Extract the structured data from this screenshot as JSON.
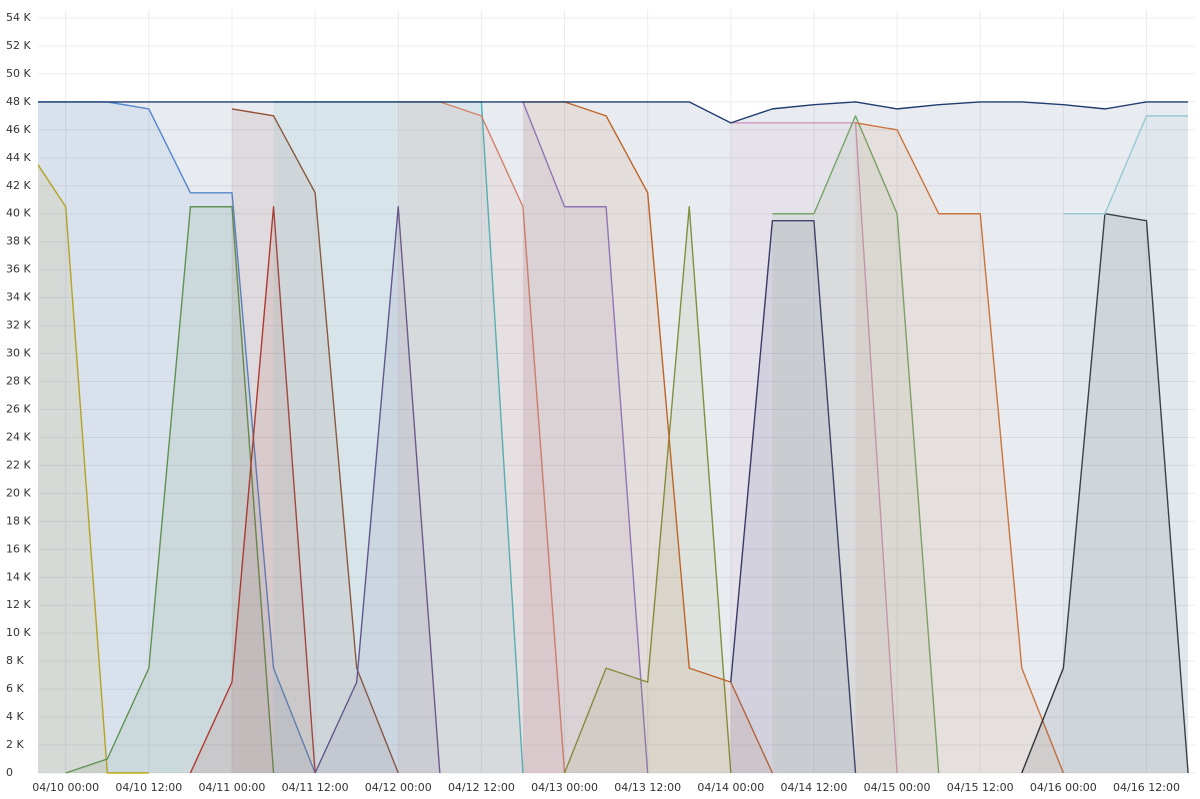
{
  "chart_data": {
    "type": "line",
    "x": [
      "04/09 18:00",
      "04/10 00:00",
      "04/10 06:00",
      "04/10 12:00",
      "04/10 18:00",
      "04/11 00:00",
      "04/11 06:00",
      "04/11 12:00",
      "04/11 18:00",
      "04/12 00:00",
      "04/12 06:00",
      "04/12 12:00",
      "04/12 18:00",
      "04/13 00:00",
      "04/13 06:00",
      "04/13 12:00",
      "04/13 18:00",
      "04/14 00:00",
      "04/14 06:00",
      "04/14 12:00",
      "04/14 18:00",
      "04/15 00:00",
      "04/15 06:00",
      "04/15 12:00",
      "04/15 18:00",
      "04/16 00:00",
      "04/16 06:00",
      "04/16 12:00",
      "04/16 18:00"
    ],
    "xlim": [
      "04/09 20:00",
      "04/16 19:00"
    ],
    "xticks": [
      "04/10 00:00",
      "04/10 12:00",
      "04/11 00:00",
      "04/11 12:00",
      "04/12 00:00",
      "04/12 12:00",
      "04/13 00:00",
      "04/13 12:00",
      "04/14 00:00",
      "04/14 12:00",
      "04/15 00:00",
      "04/15 12:00",
      "04/16 00:00",
      "04/16 12:00"
    ],
    "ylim": [
      0,
      54000
    ],
    "yticks": [
      {
        "value": 0,
        "label": "0"
      },
      {
        "value": 2000,
        "label": "2 K"
      },
      {
        "value": 4000,
        "label": "4 K"
      },
      {
        "value": 6000,
        "label": "6 K"
      },
      {
        "value": 8000,
        "label": "8 K"
      },
      {
        "value": 10000,
        "label": "10 K"
      },
      {
        "value": 12000,
        "label": "12 K"
      },
      {
        "value": 14000,
        "label": "14 K"
      },
      {
        "value": 16000,
        "label": "16 K"
      },
      {
        "value": 18000,
        "label": "18 K"
      },
      {
        "value": 20000,
        "label": "20 K"
      },
      {
        "value": 22000,
        "label": "22 K"
      },
      {
        "value": 24000,
        "label": "24 K"
      },
      {
        "value": 26000,
        "label": "26 K"
      },
      {
        "value": 28000,
        "label": "28 K"
      },
      {
        "value": 30000,
        "label": "30 K"
      },
      {
        "value": 32000,
        "label": "32 K"
      },
      {
        "value": 34000,
        "label": "34 K"
      },
      {
        "value": 36000,
        "label": "36 K"
      },
      {
        "value": 38000,
        "label": "38 K"
      },
      {
        "value": 40000,
        "label": "40 K"
      },
      {
        "value": 42000,
        "label": "42 K"
      },
      {
        "value": 44000,
        "label": "44 K"
      },
      {
        "value": 46000,
        "label": "46 K"
      },
      {
        "value": 48000,
        "label": "48 K"
      },
      {
        "value": 50000,
        "label": "50 K"
      },
      {
        "value": 52000,
        "label": "52 K"
      },
      {
        "value": 54000,
        "label": "54 K"
      }
    ],
    "grid": true,
    "series": [
      {
        "color": "#d4b106",
        "values": [
          45000,
          40500,
          0,
          0,
          null,
          null,
          null,
          null,
          null,
          null,
          null,
          null,
          null,
          null,
          null,
          null,
          null,
          null,
          null,
          null,
          null,
          null,
          null,
          null,
          null,
          null,
          null,
          null,
          null
        ]
      },
      {
        "color": "#6a9e3f",
        "values": [
          null,
          0,
          1000,
          7500,
          40500,
          40500,
          0,
          null,
          null,
          null,
          null,
          null,
          null,
          null,
          null,
          null,
          null,
          null,
          null,
          null,
          null,
          null,
          null,
          null,
          null,
          null,
          null,
          null,
          null
        ]
      },
      {
        "color": "#5b8fd6",
        "values": [
          48000,
          48000,
          48000,
          47500,
          41500,
          41500,
          7500,
          0,
          null,
          null,
          null,
          null,
          null,
          null,
          null,
          null,
          null,
          null,
          null,
          null,
          null,
          null,
          null,
          null,
          null,
          null,
          null,
          null,
          null
        ]
      },
      {
        "color": "#c0392b",
        "values": [
          null,
          null,
          null,
          null,
          0,
          6500,
          40500,
          0,
          null,
          null,
          null,
          null,
          null,
          null,
          null,
          null,
          null,
          null,
          null,
          null,
          null,
          null,
          null,
          null,
          null,
          null,
          null,
          null,
          null
        ]
      },
      {
        "color": "#a0522d",
        "values": [
          null,
          null,
          null,
          null,
          null,
          47500,
          47000,
          41500,
          7500,
          0,
          null,
          null,
          null,
          null,
          null,
          null,
          null,
          null,
          null,
          null,
          null,
          null,
          null,
          null,
          null,
          null,
          null,
          null,
          null
        ]
      },
      {
        "color": "#6c4f8e",
        "values": [
          null,
          null,
          null,
          null,
          null,
          null,
          null,
          0,
          6500,
          40500,
          0,
          null,
          null,
          null,
          null,
          null,
          null,
          null,
          null,
          null,
          null,
          null,
          null,
          null,
          null,
          null,
          null,
          null,
          null
        ]
      },
      {
        "color": "#4ec2c2",
        "values": [
          null,
          null,
          null,
          null,
          null,
          null,
          48000,
          48000,
          48000,
          48000,
          48000,
          48000,
          0,
          null,
          null,
          null,
          null,
          null,
          null,
          null,
          null,
          null,
          null,
          null,
          null,
          null,
          null,
          null,
          null
        ]
      },
      {
        "color": "#e8896a",
        "values": [
          null,
          null,
          null,
          null,
          null,
          null,
          null,
          null,
          null,
          48000,
          48000,
          47000,
          40500,
          0,
          null,
          null,
          null,
          null,
          null,
          null,
          null,
          null,
          null,
          null,
          null,
          null,
          null,
          null,
          null
        ]
      },
      {
        "color": "#9a7fd1",
        "values": [
          null,
          null,
          null,
          null,
          null,
          null,
          null,
          null,
          null,
          null,
          null,
          null,
          48000,
          40500,
          40500,
          0,
          null,
          null,
          null,
          null,
          null,
          null,
          null,
          null,
          null,
          null,
          null,
          null,
          null
        ]
      },
      {
        "color": "#8c9a3a",
        "values": [
          null,
          null,
          null,
          null,
          null,
          null,
          null,
          null,
          null,
          null,
          null,
          null,
          null,
          0,
          7500,
          6500,
          40500,
          0,
          null,
          null,
          null,
          null,
          null,
          null,
          null,
          null,
          null,
          null,
          null
        ]
      },
      {
        "color": "#d2691e",
        "values": [
          null,
          null,
          null,
          null,
          null,
          null,
          null,
          null,
          null,
          null,
          null,
          null,
          48000,
          48000,
          47000,
          41500,
          7500,
          6500,
          0,
          null,
          null,
          null,
          null,
          null,
          null,
          null,
          null,
          null,
          null
        ]
      },
      {
        "color": "#2c2f5e",
        "values": [
          null,
          null,
          null,
          null,
          null,
          null,
          null,
          null,
          null,
          null,
          null,
          null,
          null,
          null,
          null,
          null,
          null,
          6500,
          39500,
          39500,
          0,
          null,
          null,
          null,
          null,
          null,
          null,
          null,
          null
        ]
      },
      {
        "color": "#e3a0c8",
        "values": [
          null,
          null,
          null,
          null,
          null,
          null,
          null,
          null,
          null,
          null,
          null,
          null,
          null,
          null,
          null,
          null,
          null,
          46500,
          46500,
          46500,
          46500,
          0,
          null,
          null,
          null,
          null,
          null,
          null,
          null
        ]
      },
      {
        "color": "#7fb069",
        "values": [
          null,
          null,
          null,
          null,
          null,
          null,
          null,
          null,
          null,
          null,
          null,
          null,
          null,
          null,
          null,
          null,
          null,
          null,
          40000,
          40000,
          47000,
          40000,
          0,
          null,
          null,
          null,
          null,
          null,
          null
        ]
      },
      {
        "color": "#e07b39",
        "values": [
          null,
          null,
          null,
          null,
          null,
          null,
          null,
          null,
          null,
          null,
          null,
          null,
          null,
          null,
          null,
          null,
          null,
          null,
          null,
          null,
          46500,
          46000,
          40000,
          40000,
          7500,
          0,
          null,
          null,
          null
        ]
      },
      {
        "color": "#333333",
        "values": [
          null,
          null,
          null,
          null,
          null,
          null,
          null,
          null,
          null,
          null,
          null,
          null,
          null,
          null,
          null,
          null,
          null,
          null,
          null,
          null,
          null,
          null,
          null,
          null,
          0,
          7500,
          40000,
          39500,
          0
        ]
      },
      {
        "color": "#a6d8e0",
        "values": [
          null,
          null,
          null,
          null,
          null,
          null,
          null,
          null,
          null,
          null,
          null,
          null,
          null,
          null,
          null,
          null,
          null,
          null,
          null,
          null,
          null,
          null,
          null,
          null,
          null,
          40000,
          40000,
          47000,
          47000
        ]
      },
      {
        "color": "#1f3c6e",
        "values": [
          48000,
          48000,
          48000,
          48000,
          48000,
          48000,
          48000,
          48000,
          48000,
          48000,
          48000,
          48000,
          48000,
          48000,
          48000,
          48000,
          48000,
          46500,
          47500,
          47800,
          48000,
          47500,
          47800,
          48000,
          48000,
          47800,
          47500,
          48000,
          48000
        ]
      }
    ]
  }
}
